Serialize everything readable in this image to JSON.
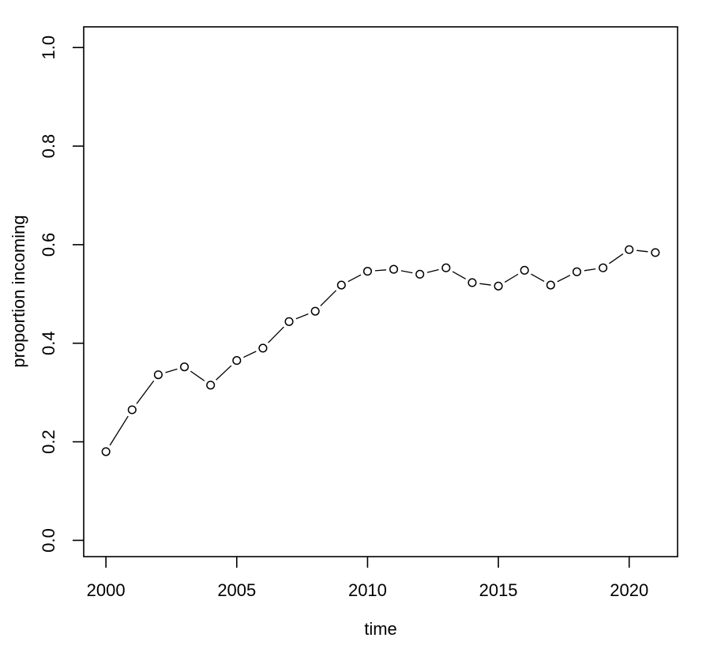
{
  "figure": {
    "background_color": "#ffffff",
    "foreground_color": "#000000"
  },
  "chart_data": {
    "type": "line",
    "style": "R-base-type-b: open circle markers joined by short line segments with gaps at markers",
    "title": "",
    "xlabel": "time",
    "ylabel": "proportion incoming",
    "x": [
      2000,
      2001,
      2002,
      2003,
      2004,
      2005,
      2006,
      2007,
      2008,
      2009,
      2010,
      2011,
      2012,
      2013,
      2014,
      2015,
      2016,
      2017,
      2018,
      2019,
      2020,
      2021
    ],
    "series": [
      {
        "name": "proportion incoming",
        "values": [
          0.18,
          0.265,
          0.336,
          0.352,
          0.315,
          0.365,
          0.39,
          0.444,
          0.465,
          0.518,
          0.546,
          0.55,
          0.54,
          0.553,
          0.523,
          0.516,
          0.548,
          0.518,
          0.545,
          0.553,
          0.59,
          0.584
        ]
      }
    ],
    "x_ticks": {
      "values": [
        2000,
        2005,
        2010,
        2015,
        2020
      ],
      "labels": [
        "2000",
        "2005",
        "2010",
        "2015",
        "2020"
      ]
    },
    "y_ticks": {
      "values": [
        0.0,
        0.2,
        0.4,
        0.6,
        0.8,
        1.0
      ],
      "labels": [
        "0.0",
        "0.2",
        "0.4",
        "0.6",
        "0.8",
        "1.0"
      ]
    },
    "xlim": [
      1999.15,
      2021.85
    ],
    "ylim": [
      -0.033,
      1.042
    ],
    "grid": false,
    "legend": null,
    "marker": "open-circle",
    "marker_color": "#000000",
    "line_color": "#000000"
  }
}
